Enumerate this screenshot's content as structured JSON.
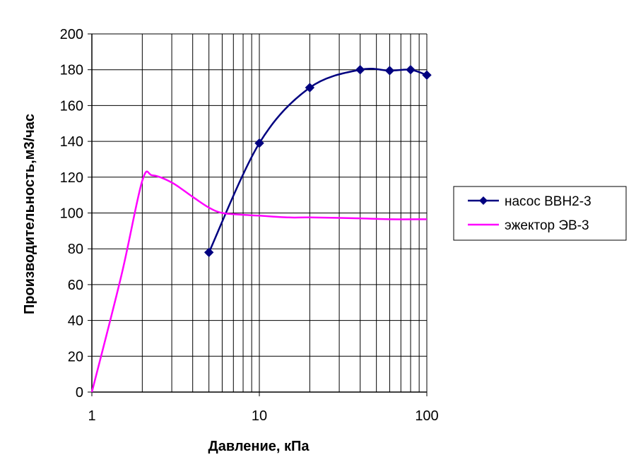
{
  "chart_data": {
    "type": "line",
    "title": "",
    "xlabel": "Давление, кПа",
    "ylabel": "Производительность,м3/час",
    "x_scale": "log",
    "xlim": [
      1,
      100
    ],
    "ylim": [
      0,
      200
    ],
    "x_ticks": [
      1,
      10,
      100
    ],
    "x_tick_labels": [
      "1",
      "10",
      "100"
    ],
    "y_ticks": [
      0,
      20,
      40,
      60,
      80,
      100,
      120,
      140,
      160,
      180,
      200
    ],
    "y_tick_labels": [
      "0",
      "20",
      "40",
      "60",
      "80",
      "100",
      "120",
      "140",
      "160",
      "180",
      "200"
    ],
    "grid": true,
    "legend_position": "right",
    "series": [
      {
        "name": "насос ВВН2-3",
        "color": "#000080",
        "marker": "diamond",
        "x": [
          5,
          10,
          20,
          40,
          60,
          80,
          100
        ],
        "y": [
          78,
          139,
          170,
          180,
          179.5,
          180,
          177
        ]
      },
      {
        "name": "эжектор ЭВ-3",
        "color": "#ff00ff",
        "marker": "none",
        "x": [
          1,
          1.5,
          2,
          2.3,
          3,
          4,
          5,
          6,
          8,
          10,
          15,
          20,
          40,
          60,
          100
        ],
        "y": [
          0,
          65,
          118,
          121,
          117,
          109,
          103,
          100,
          99,
          98.5,
          97.5,
          97.5,
          97,
          96.5,
          96.5
        ]
      }
    ]
  }
}
